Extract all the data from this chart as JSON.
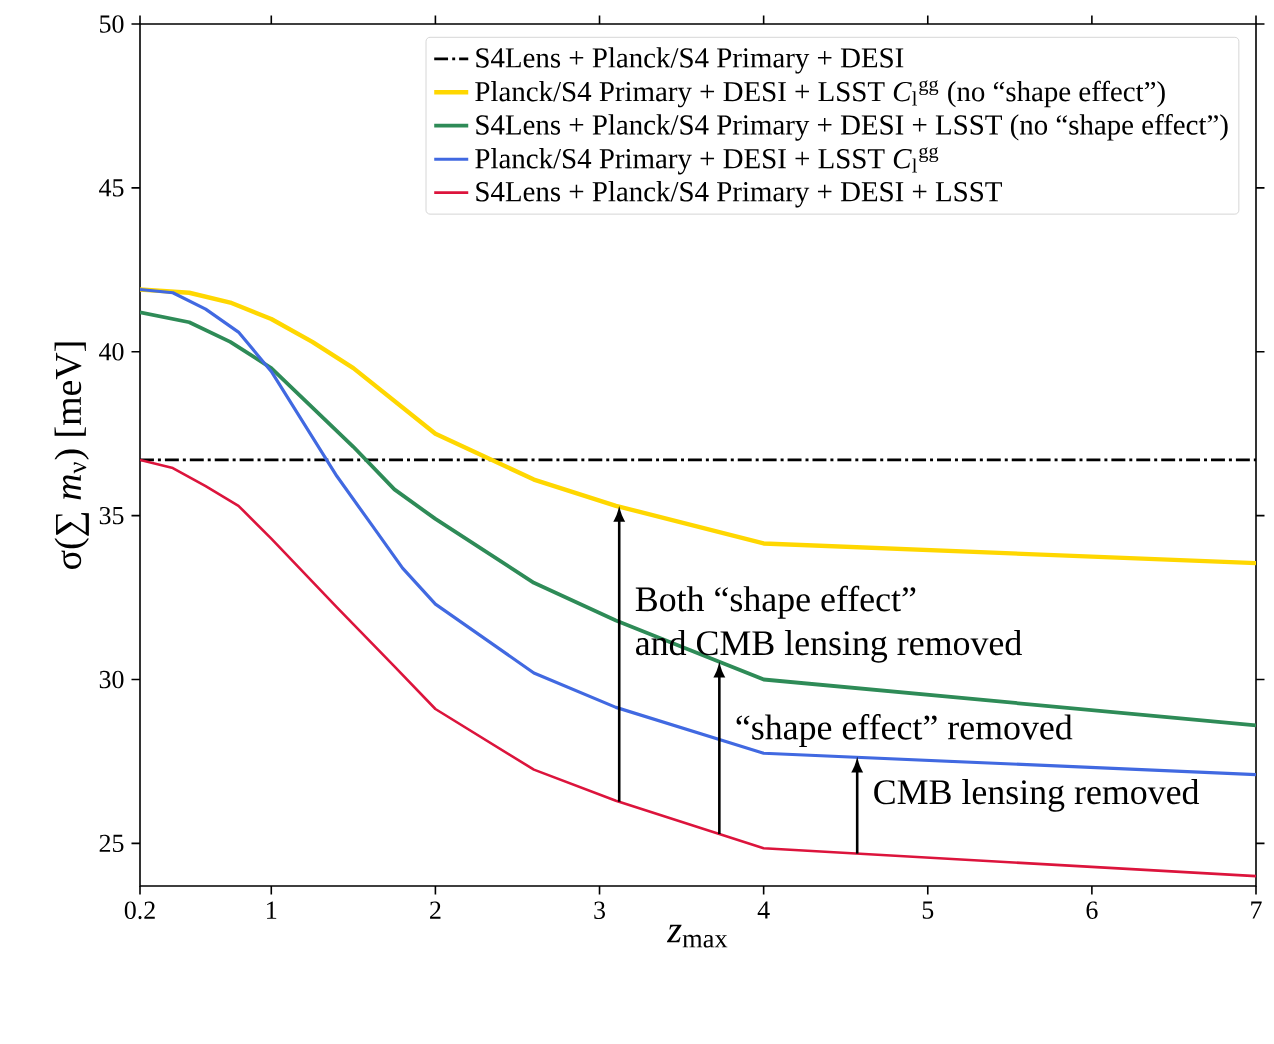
{
  "chart_data": {
    "type": "line",
    "xlabel": "*z*$_{max}$",
    "ylabel": "σ(∑ *m*$_{ν}$) [meV]",
    "xlim": [
      0.2,
      7
    ],
    "xticks": [
      0.2,
      1,
      2,
      3,
      4,
      5,
      6,
      7
    ],
    "ylim": [
      23.7,
      50
    ],
    "yticks": [
      25,
      30,
      35,
      40,
      45,
      50
    ],
    "grid": false,
    "legend": "top right",
    "marker": "none",
    "line_style": "solid",
    "ref_lines": [
      {
        "axis": "y",
        "value": 36.7,
        "label": "S4Lens + Planck/S4 Primary + DESI",
        "color": "#000000",
        "line_style": "dashdot"
      }
    ],
    "series": [
      {
        "name": "Planck/S4 Primary + DESI + LSST *C*$_{l}$$^{gg}$ (no “shape effect”)",
        "color": "#ffd700",
        "x": [
          0.2,
          0.5,
          0.75,
          1.0,
          1.25,
          1.5,
          2.0,
          2.6,
          3.1,
          4.0,
          7.0
        ],
        "values": [
          41.9,
          41.8,
          41.5,
          41.0,
          40.3,
          39.5,
          37.5,
          36.1,
          35.3,
          34.15,
          33.55
        ]
      },
      {
        "name": "S4Lens + Planck/S4 Primary + DESI + LSST (no “shape effect”)",
        "color": "#2e8b57",
        "x": [
          0.2,
          0.5,
          0.75,
          1.0,
          1.25,
          1.5,
          1.75,
          2.0,
          2.6,
          3.1,
          3.5,
          4.0,
          7.0
        ],
        "values": [
          41.2,
          40.9,
          40.3,
          39.5,
          38.3,
          37.1,
          35.8,
          34.9,
          32.95,
          31.8,
          31.0,
          30.0,
          28.6
        ]
      },
      {
        "name": "Planck/S4 Primary + DESI + LSST *C*$_{l}$$^{gg}$",
        "color": "#4169e1",
        "x": [
          0.2,
          0.4,
          0.6,
          0.8,
          1.0,
          1.2,
          1.4,
          1.6,
          1.8,
          2.0,
          2.6,
          3.1,
          4.0,
          7.0
        ],
        "values": [
          41.9,
          41.8,
          41.3,
          40.6,
          39.4,
          37.8,
          36.2,
          34.8,
          33.4,
          32.3,
          30.2,
          29.15,
          27.75,
          27.1
        ]
      },
      {
        "name": "S4Lens + Planck/S4 Primary + DESI + LSST",
        "color": "#dc143c",
        "x": [
          0.2,
          0.4,
          0.6,
          0.8,
          1.0,
          1.4,
          1.75,
          2.0,
          2.6,
          3.1,
          4.0,
          7.0
        ],
        "values": [
          36.7,
          36.45,
          35.9,
          35.3,
          34.3,
          32.2,
          30.4,
          29.1,
          27.25,
          26.3,
          24.85,
          24.0
        ]
      }
    ],
    "annotations": [
      {
        "text": "Both “shape effect”",
        "x": 3.12,
        "y": 35.3
      },
      "and CMB lensing removed",
      {
        "text": "“shape effect” removed",
        "x": 3.73,
        "y": 30.55
      },
      {
        "text": "CMB lensing removed",
        "x": 4.57,
        "y": 27.65
      }
    ]
  }
}
